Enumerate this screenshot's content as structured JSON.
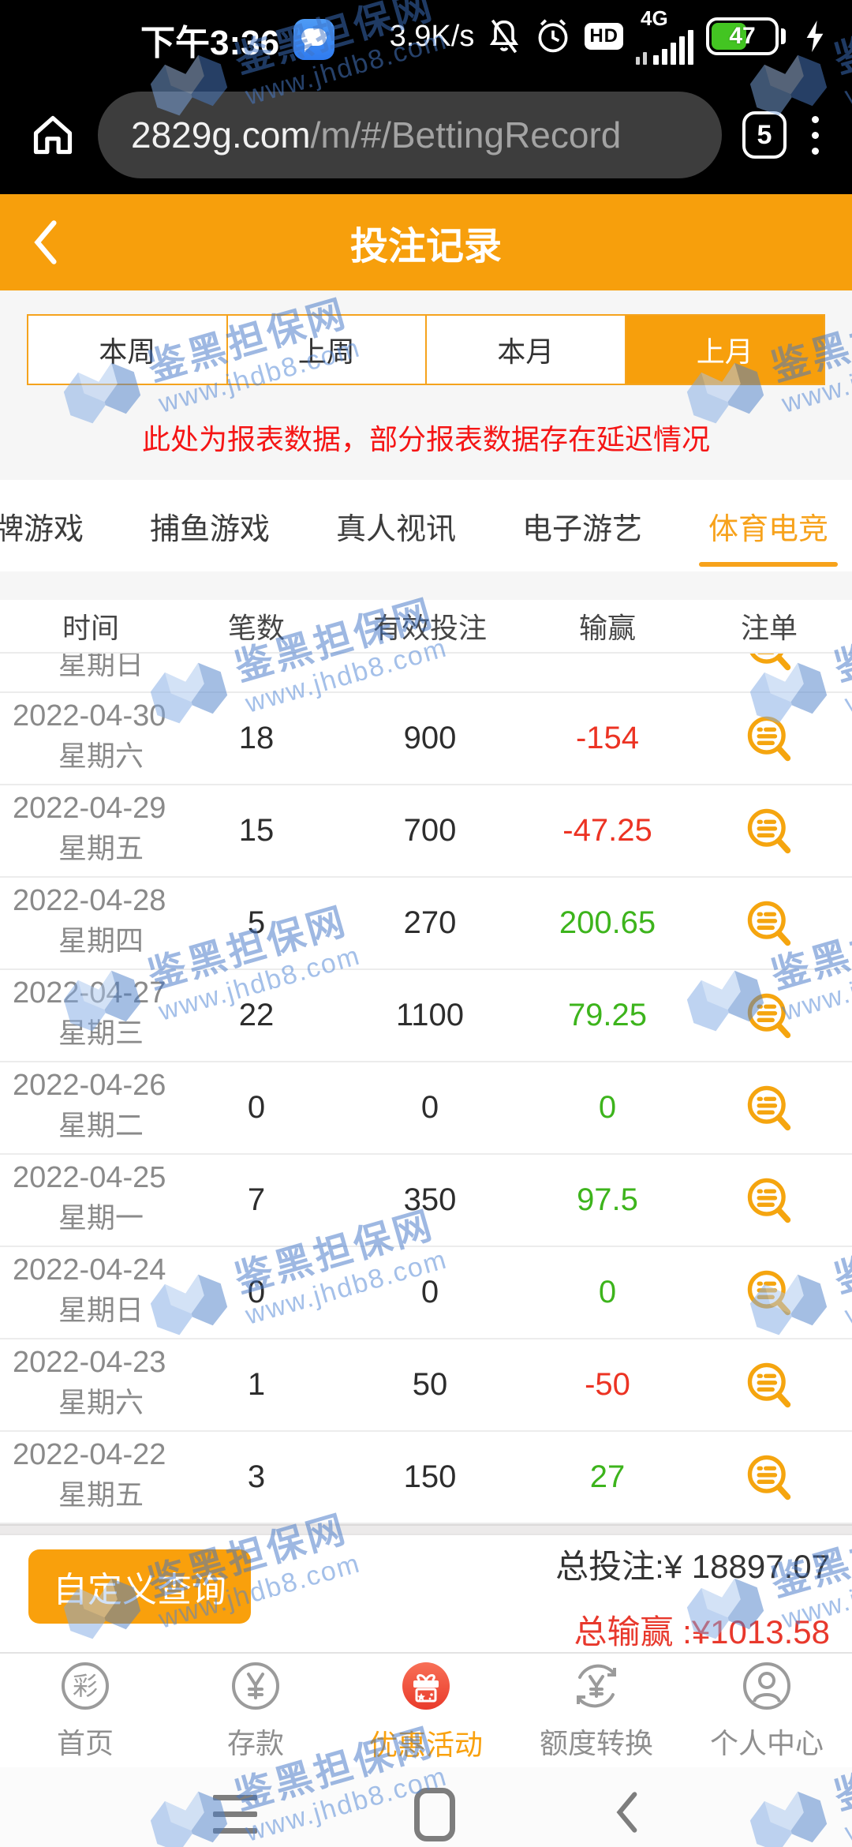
{
  "status_bar": {
    "time": "下午3:36",
    "net_speed": "3.9K/s",
    "network_type": "4G",
    "hd_label": "HD",
    "battery_level": "47"
  },
  "browser": {
    "url_domain": "2829g.com",
    "url_path": "/m/#/BettingRecord",
    "tab_count": "5"
  },
  "header": {
    "title": "投注记录"
  },
  "period_tabs": {
    "items": [
      {
        "label": "本周",
        "active": false
      },
      {
        "label": "上周",
        "active": false
      },
      {
        "label": "本月",
        "active": false
      },
      {
        "label": "上月",
        "active": true
      }
    ]
  },
  "notice": "此处为报表数据，部分报表数据存在延迟情况",
  "category_tabs": {
    "items": [
      {
        "label": "牌游戏",
        "active": false
      },
      {
        "label": "捕鱼游戏",
        "active": false
      },
      {
        "label": "真人视讯",
        "active": false
      },
      {
        "label": "电子游艺",
        "active": false
      },
      {
        "label": "体育电竞",
        "active": true
      }
    ]
  },
  "table": {
    "columns": [
      "时间",
      "笔数",
      "有效投注",
      "输赢",
      "注单"
    ],
    "partial_row": {
      "weekday": "星期日"
    },
    "rows": [
      {
        "date": "2022-04-30",
        "weekday": "星期六",
        "count": "18",
        "valid_bet": "900",
        "win_loss": "-154",
        "win_loss_color": "red"
      },
      {
        "date": "2022-04-29",
        "weekday": "星期五",
        "count": "15",
        "valid_bet": "700",
        "win_loss": "-47.25",
        "win_loss_color": "red"
      },
      {
        "date": "2022-04-28",
        "weekday": "星期四",
        "count": "5",
        "valid_bet": "270",
        "win_loss": "200.65",
        "win_loss_color": "green"
      },
      {
        "date": "2022-04-27",
        "weekday": "星期三",
        "count": "22",
        "valid_bet": "1100",
        "win_loss": "79.25",
        "win_loss_color": "green"
      },
      {
        "date": "2022-04-26",
        "weekday": "星期二",
        "count": "0",
        "valid_bet": "0",
        "win_loss": "0",
        "win_loss_color": "green"
      },
      {
        "date": "2022-04-25",
        "weekday": "星期一",
        "count": "7",
        "valid_bet": "350",
        "win_loss": "97.5",
        "win_loss_color": "green"
      },
      {
        "date": "2022-04-24",
        "weekday": "星期日",
        "count": "0",
        "valid_bet": "0",
        "win_loss": "0",
        "win_loss_color": "green"
      },
      {
        "date": "2022-04-23",
        "weekday": "星期六",
        "count": "1",
        "valid_bet": "50",
        "win_loss": "-50",
        "win_loss_color": "red"
      },
      {
        "date": "2022-04-22",
        "weekday": "星期五",
        "count": "3",
        "valid_bet": "150",
        "win_loss": "27",
        "win_loss_color": "green"
      }
    ]
  },
  "summary": {
    "total_bet_label": "总投注:",
    "total_bet_value": "¥ 18897.07",
    "total_winloss_label": "总输赢 :",
    "total_winloss_value": "¥1013.58"
  },
  "footer_button_label": "自定义查询",
  "bottom_nav": {
    "items": [
      {
        "label": "首页",
        "active": false
      },
      {
        "label": "存款",
        "active": false
      },
      {
        "label": "优惠活动",
        "active": true
      },
      {
        "label": "额度转换",
        "active": false
      },
      {
        "label": "个人中心",
        "active": false
      }
    ]
  },
  "watermark": {
    "title": "鉴黑担保网",
    "url": "www.jhdb8.com"
  },
  "colors": {
    "accent_orange": "#f79f0c",
    "active_tab_text": "#f7a21b",
    "negative_red": "#ec3323",
    "positive_green": "#3db41c",
    "notice_red": "#f51515",
    "promo_red": "#ef4a36",
    "watermark_blue": "#3f74c6"
  }
}
